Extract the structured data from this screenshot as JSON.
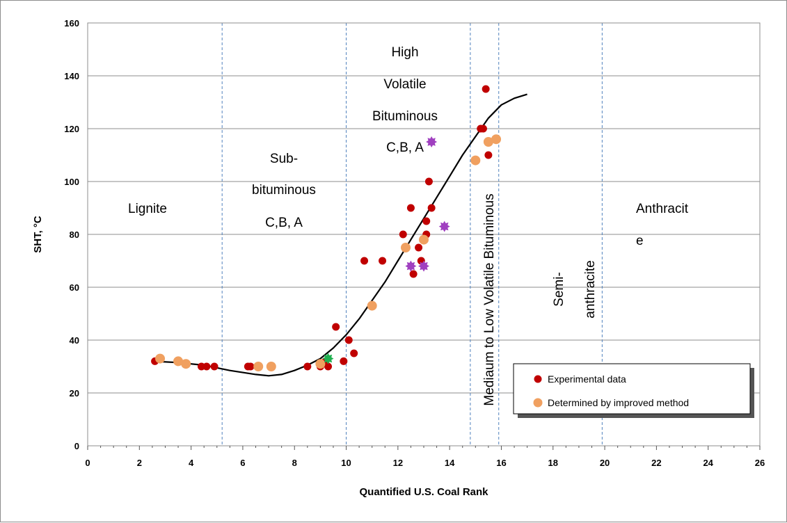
{
  "chart_data": {
    "type": "scatter",
    "xlabel": "Quantified U.S. Coal Rank",
    "ylabel": "SHT, °C",
    "xlim": [
      0,
      26
    ],
    "ylim": [
      0,
      160
    ],
    "x_ticks": [
      "0",
      "2",
      "4",
      "6",
      "8",
      "10",
      "12",
      "14",
      "16",
      "18",
      "20",
      "22",
      "24",
      "26"
    ],
    "y_ticks": [
      "0",
      "20",
      "40",
      "60",
      "80",
      "100",
      "120",
      "140",
      "160"
    ],
    "grid": "horizontal",
    "legend_position": "bottom-right",
    "boundaries_x": [
      5.2,
      10.0,
      14.8,
      15.9,
      19.9
    ],
    "region_labels": [
      {
        "lines": [
          "Lignite"
        ]
      },
      {
        "lines": [
          "Sub-",
          "bituminous",
          "C,B, A"
        ]
      },
      {
        "lines": [
          "High",
          "Volatile",
          "Bituminous",
          "C,B, A"
        ]
      },
      {
        "lines": [
          "Mediaum to Low Volatile Bituminous"
        ]
      },
      {
        "lines": [
          "Semi-",
          "anthracite"
        ]
      },
      {
        "lines": [
          "Anthracit",
          "e"
        ]
      }
    ],
    "series": [
      {
        "name": "Experimental data",
        "color": "#c00000",
        "points": [
          [
            2.6,
            32
          ],
          [
            4.4,
            30
          ],
          [
            4.6,
            30
          ],
          [
            4.9,
            30
          ],
          [
            6.2,
            30
          ],
          [
            6.3,
            30
          ],
          [
            8.5,
            30
          ],
          [
            9.0,
            30
          ],
          [
            9.2,
            32
          ],
          [
            9.3,
            30
          ],
          [
            9.6,
            45
          ],
          [
            9.9,
            32
          ],
          [
            10.1,
            40
          ],
          [
            10.3,
            35
          ],
          [
            10.7,
            70
          ],
          [
            11.4,
            70
          ],
          [
            12.2,
            80
          ],
          [
            12.5,
            90
          ],
          [
            12.6,
            65
          ],
          [
            12.8,
            75
          ],
          [
            12.9,
            70
          ],
          [
            13.1,
            85
          ],
          [
            13.1,
            80
          ],
          [
            13.2,
            100
          ],
          [
            13.3,
            90
          ],
          [
            15.2,
            120
          ],
          [
            15.3,
            120
          ],
          [
            15.4,
            135
          ],
          [
            15.5,
            110
          ]
        ]
      },
      {
        "name": "Determined by improved method",
        "color": "#f0a060",
        "points": [
          [
            2.8,
            33
          ],
          [
            3.5,
            32
          ],
          [
            3.8,
            31
          ],
          [
            6.6,
            30
          ],
          [
            7.1,
            30
          ],
          [
            9.0,
            31
          ],
          [
            11.0,
            53
          ],
          [
            12.3,
            75
          ],
          [
            13.0,
            78
          ],
          [
            15.0,
            108
          ],
          [
            15.5,
            115
          ],
          [
            15.8,
            116
          ]
        ]
      },
      {
        "color": "#a040c0",
        "marker": "star",
        "points": [
          [
            12.5,
            68
          ],
          [
            13.0,
            68
          ],
          [
            13.3,
            115
          ],
          [
            13.8,
            83
          ]
        ]
      },
      {
        "color": "#20b050",
        "marker": "star",
        "points": [
          [
            9.3,
            33
          ]
        ]
      }
    ],
    "fit_curve": {
      "color": "#000000",
      "points": [
        [
          2.5,
          32
        ],
        [
          3.5,
          31.5
        ],
        [
          4.5,
          30.5
        ],
        [
          5.5,
          28.5
        ],
        [
          6.5,
          27
        ],
        [
          7.0,
          26.5
        ],
        [
          7.5,
          27
        ],
        [
          8.0,
          28.5
        ],
        [
          8.5,
          30.5
        ],
        [
          9.0,
          33
        ],
        [
          9.5,
          37
        ],
        [
          10.0,
          42
        ],
        [
          10.5,
          48
        ],
        [
          11.0,
          55
        ],
        [
          11.5,
          62
        ],
        [
          12.0,
          70
        ],
        [
          12.5,
          78
        ],
        [
          13.0,
          86
        ],
        [
          13.5,
          94
        ],
        [
          14.0,
          102
        ],
        [
          14.5,
          110
        ],
        [
          15.0,
          117
        ],
        [
          15.5,
          124
        ],
        [
          16.0,
          129
        ],
        [
          16.5,
          131.5
        ],
        [
          17.0,
          133
        ]
      ]
    }
  }
}
